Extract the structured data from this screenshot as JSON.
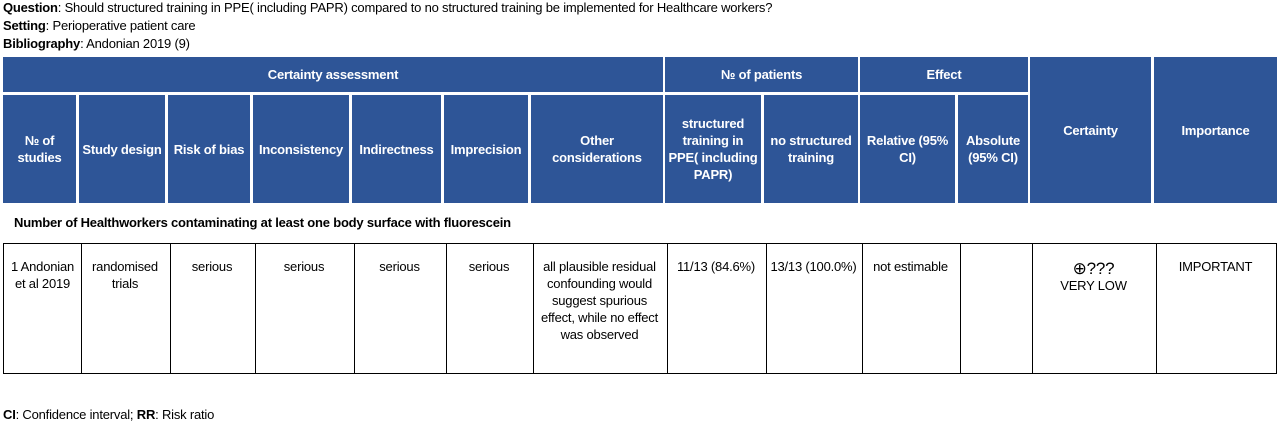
{
  "header": {
    "question_label": "Question",
    "question_text": ": Should structured training in PPE( including PAPR) compared to no structured training be implemented for Healthcare workers?",
    "setting_label": "Setting",
    "setting_text": ": Perioperative patient care",
    "bibliography_label": "Bibliography",
    "bibliography_text": ": Andonian 2019 (9)"
  },
  "table": {
    "group_headers": [
      "Certainty assessment",
      "№ of patients",
      "Effect",
      "Certainty",
      "Importance"
    ],
    "column_headers": [
      "№ of studies",
      "Study design",
      "Risk of bias",
      "Inconsistency",
      "Indirectness",
      "Imprecision",
      "Other considerations",
      "structured training in PPE( including PAPR)",
      "no structured training",
      "Relative (95% CI)",
      "Absolute (95% CI)"
    ],
    "section": "Number of Healthworkers contaminating at least one body surface with fluorescein",
    "row": [
      "1 Andonian et al 2019",
      "randomised trials",
      "serious",
      "serious",
      "serious",
      "serious",
      "all plausible residual confounding would suggest spurious effect, while no effect was observed",
      "11/13 (84.6%)",
      "13/13 (100.0%)",
      "not estimable",
      "",
      "⊕???",
      "IMPORTANT"
    ],
    "certainty_label": "VERY LOW"
  },
  "footer": {
    "ci_label": "CI",
    "ci_text": ": Confidence interval; ",
    "rr_label": "RR",
    "rr_text": ": Risk ratio"
  }
}
